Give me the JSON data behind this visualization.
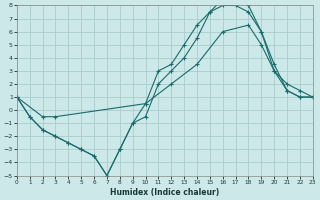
{
  "xlabel": "Humidex (Indice chaleur)",
  "xlim": [
    0,
    23
  ],
  "ylim": [
    -5,
    8
  ],
  "bg_color": "#cce8e8",
  "grid_color": "#aacccc",
  "line_color": "#1a6b6b",
  "line1_x": [
    0,
    1,
    2,
    3,
    4,
    5,
    6,
    7,
    8,
    9,
    10,
    11,
    12,
    13,
    14,
    15,
    16,
    17,
    18,
    19,
    20,
    21,
    22,
    23
  ],
  "line1_y": [
    1,
    -0.5,
    -1.5,
    -2,
    -2.5,
    -3.0,
    -3.5,
    -5,
    -3,
    -1,
    0.5,
    3,
    3.5,
    5,
    6.5,
    7.5,
    8,
    8,
    7.5,
    6,
    3,
    1.5,
    1,
    1
  ],
  "line2_x": [
    0,
    2,
    3,
    10,
    12,
    14,
    16,
    18,
    19,
    20,
    21,
    22,
    23
  ],
  "line2_y": [
    1,
    -0.5,
    -0.5,
    0.5,
    2,
    3.5,
    6,
    6.5,
    5,
    3,
    2,
    1.5,
    1
  ],
  "line3_x": [
    0,
    1,
    2,
    3,
    4,
    5,
    6,
    7,
    8,
    9,
    10,
    11,
    12,
    13,
    14,
    15,
    16,
    17,
    18,
    19,
    20,
    21,
    22,
    23
  ],
  "line3_y": [
    1,
    -0.5,
    -1.5,
    -2.0,
    -2.5,
    -3.0,
    -3.5,
    -5,
    -3,
    -1,
    -0.5,
    2,
    3,
    4,
    5.5,
    7.5,
    8.5,
    8.5,
    8,
    6,
    3.5,
    1.5,
    1,
    1
  ]
}
